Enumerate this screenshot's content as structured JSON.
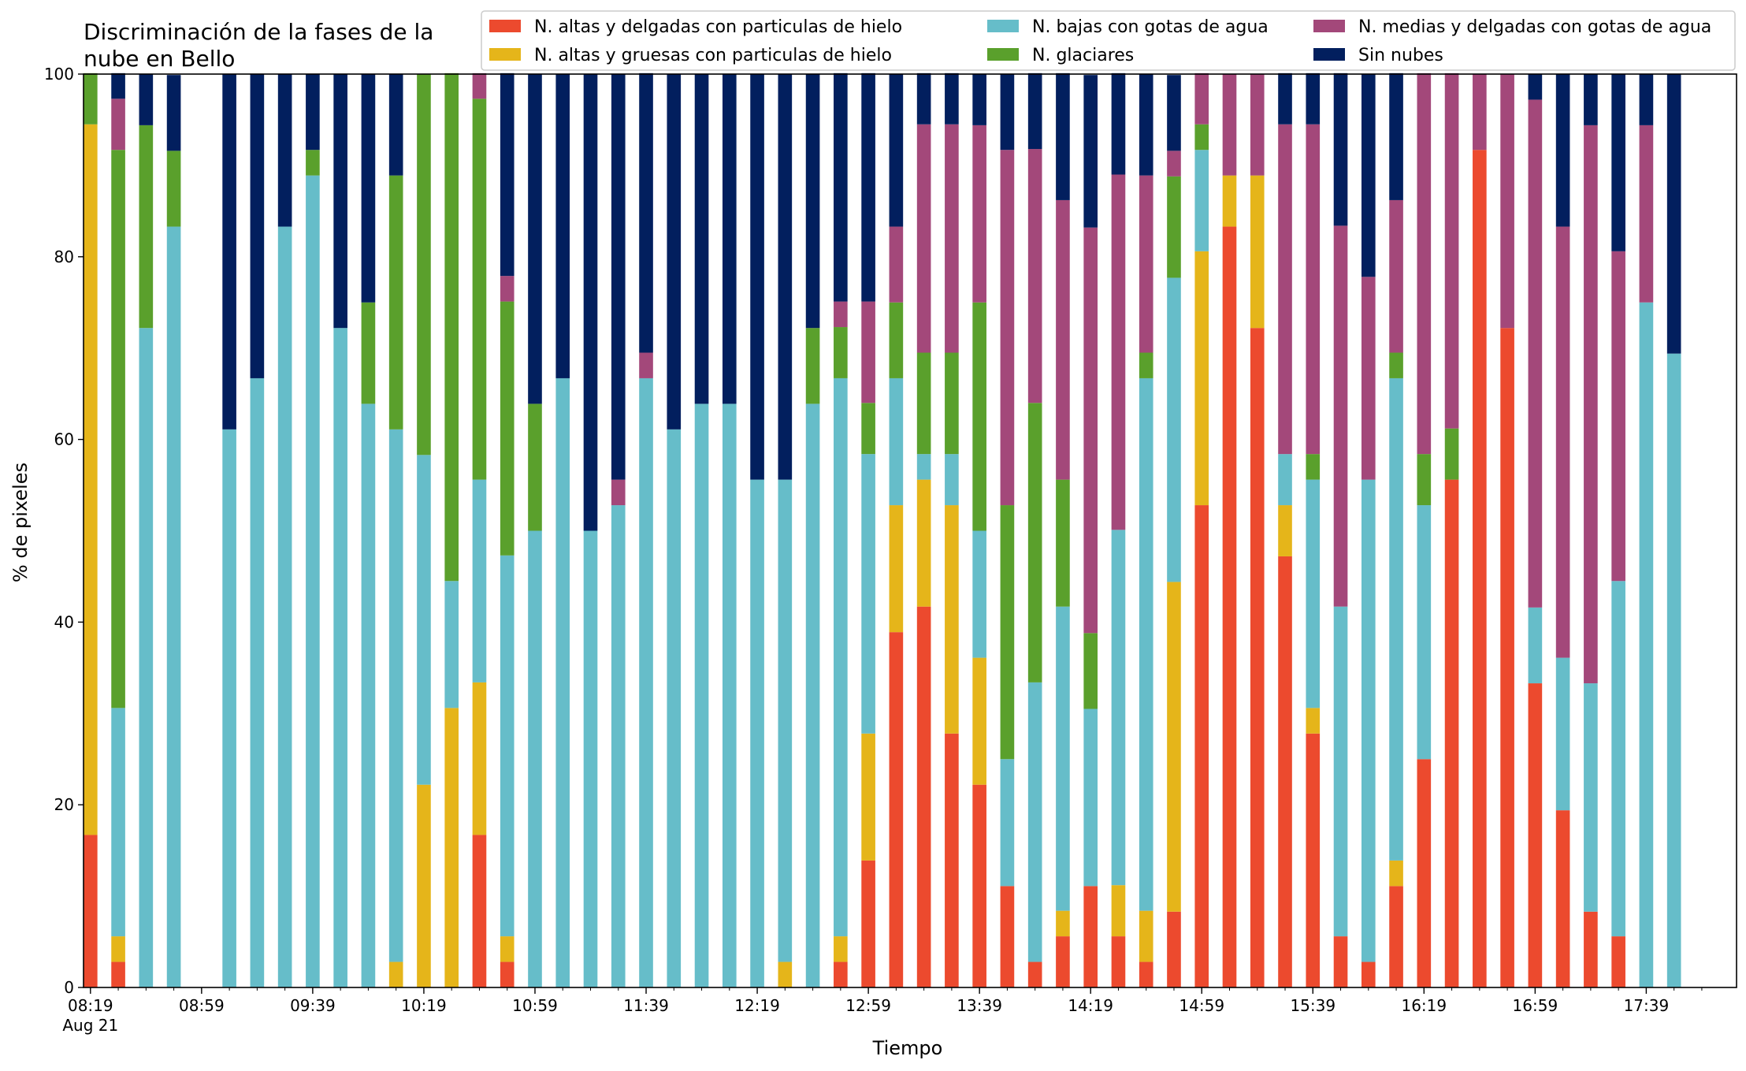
{
  "chart_data": {
    "type": "bar",
    "stacked": true,
    "title": "Discriminación de la fases de la\nnube en Bello",
    "xlabel": "Tiempo",
    "ylabel": "% de pixeles",
    "ylim": [
      0,
      100
    ],
    "yticks": [
      0,
      20,
      40,
      60,
      80,
      100
    ],
    "x_tick_labels": [
      "08:19",
      "08:59",
      "09:39",
      "10:19",
      "10:59",
      "11:39",
      "12:19",
      "12:59",
      "13:39",
      "14:19",
      "14:59",
      "15:39",
      "16:19",
      "16:59",
      "17:39"
    ],
    "x_date_label": "Aug 21",
    "legend_placement": "top-right",
    "grid": false,
    "n_slots": 59,
    "series": [
      {
        "name": "N. altas y delgadas con particulas de hielo",
        "color": "#ec4a2e",
        "values": [
          16.7,
          2.8,
          0,
          0,
          0,
          0,
          0,
          0,
          0,
          0,
          0,
          0,
          0,
          0,
          16.7,
          2.8,
          0,
          0,
          0,
          0,
          0,
          0,
          0,
          0,
          0,
          0,
          0,
          2.8,
          13.9,
          38.9,
          41.7,
          27.8,
          22.2,
          11.1,
          2.8,
          5.6,
          11.1,
          5.6,
          2.8,
          8.3,
          52.8,
          83.3,
          72.2,
          47.2,
          27.8,
          5.6,
          2.8,
          11.1,
          25,
          55.6,
          91.7,
          72.2,
          33.3,
          19.4,
          8.3,
          5.6,
          0,
          0,
          0
        ]
      },
      {
        "name": "N. altas y gruesas con particulas de hielo",
        "color": "#e5b51a",
        "values": [
          77.8,
          2.8,
          0,
          0,
          0,
          0,
          0,
          0,
          0,
          0,
          0,
          2.8,
          22.2,
          30.6,
          16.7,
          2.8,
          0,
          0,
          0,
          0,
          0,
          0,
          0,
          0,
          0,
          2.8,
          0,
          2.8,
          13.9,
          13.9,
          13.9,
          25,
          13.9,
          0,
          0,
          2.8,
          0,
          5.6,
          5.6,
          36.1,
          27.8,
          5.6,
          16.7,
          5.6,
          2.8,
          0,
          0,
          2.8,
          0,
          0,
          0,
          0,
          0,
          0,
          0,
          0,
          0,
          0,
          0
        ]
      },
      {
        "name": "N. bajas con gotas de agua",
        "color": "#66bdc9",
        "values": [
          0,
          25,
          72.2,
          83.3,
          0,
          61.1,
          66.7,
          83.3,
          88.9,
          72.2,
          63.9,
          58.3,
          36.1,
          13.9,
          22.2,
          41.7,
          50,
          66.7,
          50,
          52.8,
          66.7,
          61.1,
          63.9,
          63.9,
          55.6,
          52.8,
          63.9,
          61.1,
          30.6,
          13.9,
          2.8,
          5.6,
          13.9,
          13.9,
          30.6,
          33.3,
          19.4,
          38.9,
          58.3,
          33.3,
          11.1,
          0,
          0,
          5.6,
          25,
          36.1,
          52.8,
          52.8,
          27.8,
          0,
          0,
          0,
          8.3,
          16.7,
          25,
          38.9,
          75,
          69.4,
          0
        ]
      },
      {
        "name": "N. glaciares",
        "color": "#5aa02c",
        "values": [
          5.6,
          61.1,
          22.2,
          8.3,
          0,
          0,
          0,
          0,
          2.8,
          0,
          11.1,
          27.8,
          41.7,
          55.6,
          41.7,
          27.8,
          13.9,
          0,
          0,
          0,
          0,
          0,
          0,
          0,
          0,
          0,
          8.3,
          5.6,
          5.6,
          8.3,
          11.1,
          11.1,
          25,
          27.8,
          30.6,
          13.9,
          8.3,
          0,
          2.8,
          11.1,
          2.8,
          0,
          0,
          0,
          2.8,
          0,
          0,
          2.8,
          5.6,
          5.6,
          0,
          0,
          0,
          0,
          0,
          0,
          0,
          0,
          0
        ]
      },
      {
        "name": "N. medias y delgadas con gotas de agua",
        "color": "#a3487a",
        "values": [
          0,
          5.6,
          0,
          0,
          0,
          0,
          0,
          0,
          0,
          0,
          0,
          0,
          0,
          0,
          2.8,
          2.8,
          0,
          0,
          0,
          2.8,
          2.8,
          0,
          0,
          0,
          0,
          0,
          0,
          2.8,
          11.1,
          8.3,
          25,
          25,
          19.4,
          38.9,
          27.8,
          30.6,
          44.4,
          38.9,
          19.4,
          2.8,
          5.6,
          11.1,
          11.1,
          36.1,
          36.1,
          41.7,
          22.2,
          16.7,
          41.7,
          38.9,
          8.3,
          27.8,
          55.6,
          47.2,
          61.1,
          36.1,
          19.4,
          0,
          0
        ]
      },
      {
        "name": "Sin nubes",
        "color": "#021f5e",
        "values": [
          0,
          2.8,
          5.6,
          8.3,
          0,
          38.9,
          33.3,
          16.7,
          8.3,
          27.8,
          25,
          11.1,
          0,
          0,
          0,
          22.2,
          36.1,
          33.3,
          50,
          44.4,
          30.6,
          38.9,
          36.1,
          36.1,
          44.4,
          44.4,
          27.8,
          25,
          25,
          16.7,
          5.6,
          5.6,
          5.6,
          8.3,
          8.3,
          13.9,
          16.7,
          11.1,
          11.1,
          8.3,
          0,
          0,
          0,
          5.6,
          5.6,
          16.7,
          22.2,
          13.9,
          0,
          0,
          0,
          0,
          2.8,
          16.7,
          5.6,
          19.4,
          5.6,
          30.6,
          0
        ]
      }
    ]
  }
}
